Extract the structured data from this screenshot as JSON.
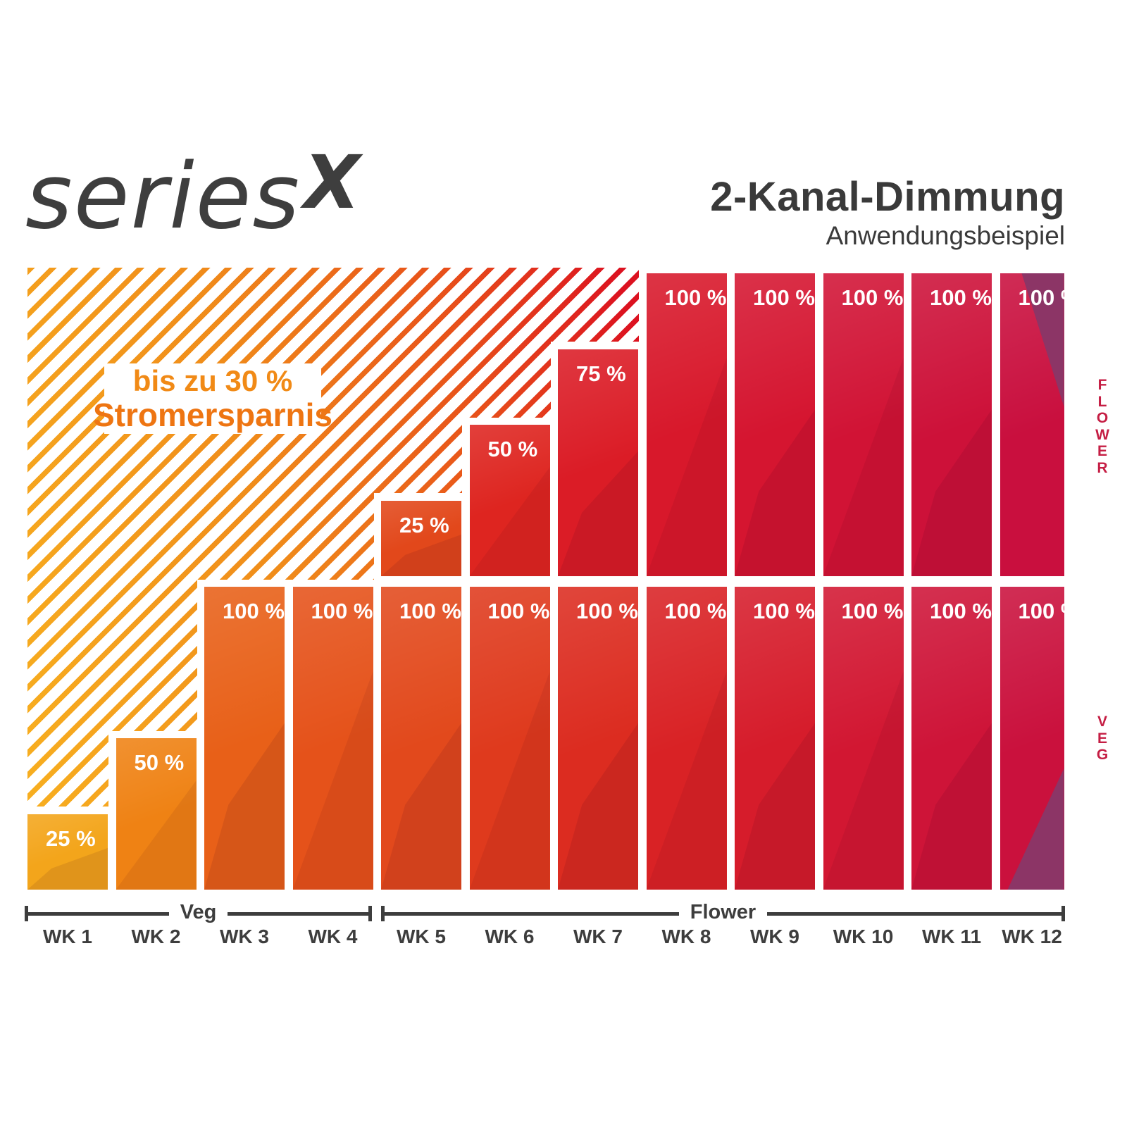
{
  "logo": {
    "series": "series",
    "x": "X"
  },
  "header": {
    "title": "2-Kanal-Dimmung",
    "subtitle": "Anwendungsbeispiel"
  },
  "savings_note": {
    "line1": "bis zu 30 %",
    "line2": "Stromersparnis"
  },
  "side_labels": {
    "flower": "FLOWER",
    "veg": "VEG"
  },
  "axis": {
    "veg_phase_label": "Veg",
    "flower_phase_label": "Flower"
  },
  "colors": {
    "text_dark": "#3a3a3a",
    "axis": "#3d3d3d",
    "side_label_red": "#c51e44",
    "savings_orange": "#ee7512",
    "purple_facet": "#8c3566",
    "hatch_gradient": [
      "#f8b120",
      "#f08c1a",
      "#e8511a",
      "#dc1220"
    ],
    "flower_bars": [
      null,
      null,
      null,
      null,
      "#e2481b",
      "#de2520",
      "#db1c26",
      "#d8182b",
      "#d51530",
      "#d11335",
      "#cd1139",
      "#c90f3e"
    ],
    "veg_bars": [
      "#f3a51b",
      "#ef8214",
      "#e86018",
      "#e5521a",
      "#e2491c",
      "#df3a1d",
      "#dc2c20",
      "#d92225",
      "#d61c2b",
      "#d21732",
      "#ce1438",
      "#ca113d"
    ]
  },
  "chart_data": {
    "type": "bar",
    "title": "2-Kanal-Dimmung",
    "subtitle": "Anwendungsbeispiel",
    "unit": "%",
    "ylim": [
      0,
      100
    ],
    "categories": [
      "WK 1",
      "WK 2",
      "WK 3",
      "WK 4",
      "WK 5",
      "WK 6",
      "WK 7",
      "WK 8",
      "WK 9",
      "WK 10",
      "WK 11",
      "WK 12"
    ],
    "series": [
      {
        "name": "Flower",
        "values_percent": [
          null,
          null,
          null,
          null,
          25,
          50,
          75,
          100,
          100,
          100,
          100,
          100
        ]
      },
      {
        "name": "Veg",
        "values_percent": [
          25,
          50,
          100,
          100,
          100,
          100,
          100,
          100,
          100,
          100,
          100,
          100
        ]
      }
    ],
    "phase_spans": [
      {
        "label": "Veg",
        "weeks": [
          1,
          4
        ]
      },
      {
        "label": "Flower",
        "weeks": [
          5,
          12
        ]
      }
    ],
    "annotation": "bis zu 30 % Stromersparnis",
    "legend_position": "none",
    "grid": false
  }
}
